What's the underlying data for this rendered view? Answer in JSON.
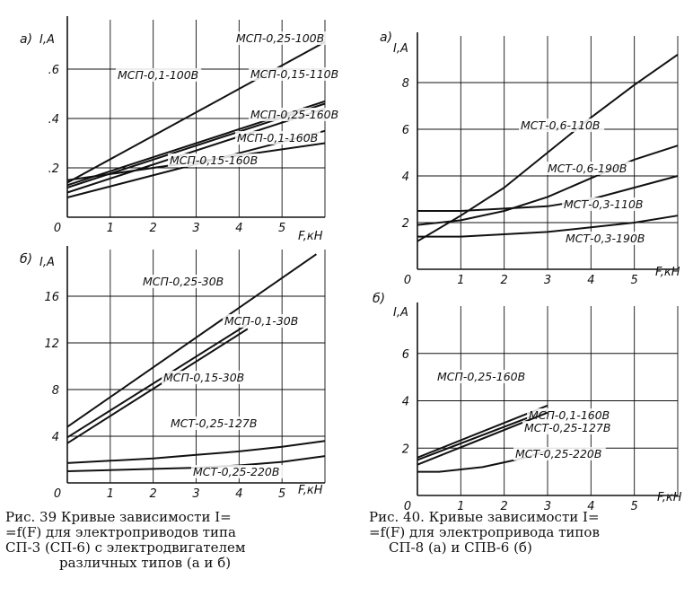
{
  "chart_data": [
    {
      "type": "line",
      "panel_letter": "а)",
      "ylabel": "I,A",
      "xlabel": "F,кН",
      "xlim": [
        0,
        6
      ],
      "ylim": [
        0,
        0.8
      ],
      "xticks": [
        {
          "v": 0,
          "t": "0"
        },
        {
          "v": 1,
          "t": "1"
        },
        {
          "v": 2,
          "t": "2"
        },
        {
          "v": 3,
          "t": "3"
        },
        {
          "v": 4,
          "t": "4"
        },
        {
          "v": 5,
          "t": "5"
        }
      ],
      "yticks": [
        {
          "v": 0.2,
          "t": ".2"
        },
        {
          "v": 0.4,
          "t": ".4"
        },
        {
          "v": 0.6,
          "t": ".6"
        }
      ],
      "grid": true,
      "series": [
        {
          "name": "МСП-0,25-100В",
          "x": [
            0,
            6
          ],
          "y": [
            0.14,
            0.71
          ]
        },
        {
          "name": "МСП-0,1-100В",
          "x": [
            0,
            6
          ],
          "y": [
            0.13,
            0.47
          ]
        },
        {
          "name": "МСП-0,15-110В",
          "x": [
            0,
            6
          ],
          "y": [
            0.12,
            0.46
          ]
        },
        {
          "name": "МСП-0,25-160В",
          "x": [
            0,
            6
          ],
          "y": [
            0.1,
            0.44
          ]
        },
        {
          "name": "МСП-0,1-160В",
          "x": [
            0,
            6
          ],
          "y": [
            0.08,
            0.35
          ]
        },
        {
          "name": "МСП-0,15-160В",
          "x": [
            0,
            6
          ],
          "y": [
            0.15,
            0.3
          ]
        }
      ]
    },
    {
      "type": "line",
      "panel_letter": "б)",
      "ylabel": "I,A",
      "xlabel": "F,кН",
      "xlim": [
        0,
        6
      ],
      "ylim": [
        0,
        20
      ],
      "xticks": [
        {
          "v": 0,
          "t": "0"
        },
        {
          "v": 1,
          "t": "1"
        },
        {
          "v": 2,
          "t": "2"
        },
        {
          "v": 3,
          "t": "3"
        },
        {
          "v": 4,
          "t": "4"
        },
        {
          "v": 5,
          "t": "5"
        }
      ],
      "yticks": [
        {
          "v": 4,
          "t": "4"
        },
        {
          "v": 8,
          "t": "8"
        },
        {
          "v": 12,
          "t": "12"
        },
        {
          "v": 16,
          "t": "16"
        }
      ],
      "grid": true,
      "series": [
        {
          "name": "МСП-0,25-30В",
          "x": [
            0,
            5.8
          ],
          "y": [
            4.8,
            19.6
          ]
        },
        {
          "name": "МСП-0,1-30В",
          "x": [
            0,
            4.2
          ],
          "y": [
            3.9,
            13.6
          ]
        },
        {
          "name": "МСП-0,15-30В",
          "x": [
            0,
            4.2
          ],
          "y": [
            3.4,
            13.2
          ]
        },
        {
          "name": "МСТ-0,25-127В",
          "x": [
            0,
            1,
            2,
            3,
            4,
            5,
            6
          ],
          "y": [
            1.7,
            1.9,
            2.1,
            2.4,
            2.7,
            3.1,
            3.6
          ]
        },
        {
          "name": "МСТ-0,25-220В",
          "x": [
            0,
            1,
            2,
            3,
            4,
            5,
            6
          ],
          "y": [
            1.0,
            1.1,
            1.2,
            1.3,
            1.5,
            1.8,
            2.3
          ]
        }
      ]
    },
    {
      "type": "line",
      "panel_letter": "а)",
      "ylabel": "I,A",
      "xlabel": "F,кН",
      "xlim": [
        0,
        6
      ],
      "ylim": [
        0,
        10
      ],
      "xticks": [
        {
          "v": 0,
          "t": "0"
        },
        {
          "v": 1,
          "t": "1"
        },
        {
          "v": 2,
          "t": "2"
        },
        {
          "v": 3,
          "t": "3"
        },
        {
          "v": 4,
          "t": "4"
        },
        {
          "v": 5,
          "t": "5"
        }
      ],
      "yticks": [
        {
          "v": 2,
          "t": "2"
        },
        {
          "v": 4,
          "t": "4"
        },
        {
          "v": 6,
          "t": "6"
        },
        {
          "v": 8,
          "t": "8"
        }
      ],
      "grid": true,
      "series": [
        {
          "name": "МСТ-0,6-110В",
          "x": [
            0,
            1,
            2,
            3,
            4,
            5,
            6
          ],
          "y": [
            1.2,
            2.3,
            3.5,
            5.0,
            6.5,
            7.9,
            9.2
          ]
        },
        {
          "name": "МСТ-0,6-190В",
          "x": [
            0,
            1,
            2,
            3,
            4,
            5,
            6
          ],
          "y": [
            1.9,
            2.1,
            2.5,
            3.1,
            3.9,
            4.7,
            5.3
          ]
        },
        {
          "name": "МСТ-0,3-110В",
          "x": [
            0,
            1,
            2,
            3,
            4,
            5,
            6
          ],
          "y": [
            2.5,
            2.5,
            2.6,
            2.7,
            3.0,
            3.5,
            4.0
          ]
        },
        {
          "name": "МСТ-0,3-190В",
          "x": [
            0,
            1,
            2,
            3,
            4,
            5,
            6
          ],
          "y": [
            1.4,
            1.4,
            1.5,
            1.6,
            1.8,
            2.0,
            2.3
          ]
        }
      ]
    },
    {
      "type": "line",
      "panel_letter": "б)",
      "ylabel": "I,A",
      "xlabel": "F,кН",
      "xlim": [
        0,
        6
      ],
      "ylim": [
        0,
        8
      ],
      "xticks": [
        {
          "v": 0,
          "t": "0"
        },
        {
          "v": 1,
          "t": "1"
        },
        {
          "v": 2,
          "t": "2"
        },
        {
          "v": 3,
          "t": "3"
        },
        {
          "v": 4,
          "t": "4"
        },
        {
          "v": 5,
          "t": "5"
        }
      ],
      "yticks": [
        {
          "v": 2,
          "t": "2"
        },
        {
          "v": 4,
          "t": "4"
        },
        {
          "v": 6,
          "t": "6"
        }
      ],
      "grid": true,
      "series": [
        {
          "name": "МСП-0,25-160В",
          "x": [
            0,
            3
          ],
          "y": [
            1.6,
            3.8
          ]
        },
        {
          "name": "МСП-0,1-160В",
          "x": [
            0,
            3
          ],
          "y": [
            1.5,
            3.6
          ]
        },
        {
          "name": "МСТ-0,25-127В",
          "x": [
            0,
            3
          ],
          "y": [
            1.3,
            3.5
          ]
        },
        {
          "name": "МСТ-0,25-220В",
          "x": [
            0,
            0.5,
            1,
            1.5,
            2,
            2.5,
            3
          ],
          "y": [
            1.0,
            1.0,
            1.1,
            1.2,
            1.4,
            1.6,
            1.9
          ]
        }
      ]
    }
  ],
  "captions": {
    "fig39": [
      "Рис. 39 Кривые зависимости I=",
      "=f(F) для электроприводов типа",
      "СП-3 (СП-6) с электродвигателем",
      "различных типов (а и б)"
    ],
    "fig40": [
      "Рис. 40. Кривые зависимости I=",
      "=f(F) для электропривода типов",
      "СП-8 (а) и СПВ-6 (б)"
    ]
  },
  "colors": {
    "ink": "#111111",
    "paper": "#ffffff"
  }
}
